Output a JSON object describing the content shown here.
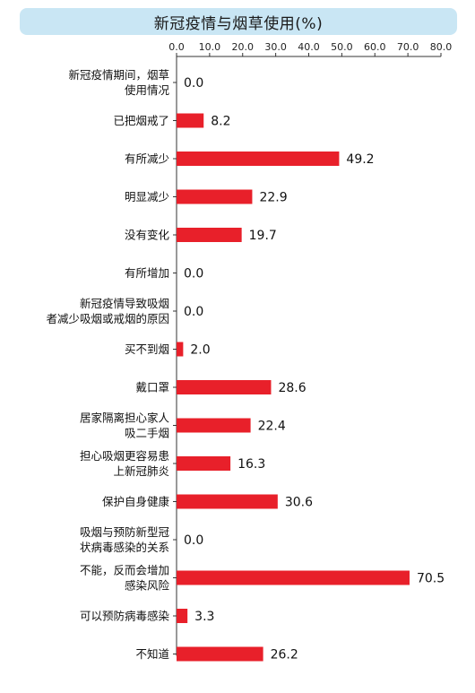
{
  "chart_data": {
    "type": "bar",
    "orientation": "horizontal",
    "title": "新冠疫情与烟草使用(%)",
    "xlim": [
      0,
      80
    ],
    "ticks": [
      "0.0",
      "10.0",
      "20.0",
      "30.0",
      "40.0",
      "50.0",
      "60.0",
      "70.0",
      "80.0"
    ],
    "tick_values": [
      0,
      10,
      20,
      30,
      40,
      50,
      60,
      70,
      80
    ],
    "bar_color": "#e8202a",
    "title_bg_color": "#c9e6f4",
    "categories": [
      [
        "新冠疫情期间，烟草",
        "使用情况"
      ],
      [
        "已把烟戒了"
      ],
      [
        "有所减少"
      ],
      [
        "明显减少"
      ],
      [
        "没有变化"
      ],
      [
        "有所增加"
      ],
      [
        "新冠疫情导致吸烟",
        "者减少吸烟或戒烟的原因"
      ],
      [
        "买不到烟"
      ],
      [
        "戴口罩"
      ],
      [
        "居家隔离担心家人",
        "吸二手烟"
      ],
      [
        "担心吸烟更容易患",
        "上新冠肺炎"
      ],
      [
        "保护自身健康"
      ],
      [
        "吸烟与预防新型冠",
        "状病毒感染的关系"
      ],
      [
        "不能，反而会增加",
        "感染风险"
      ],
      [
        "可以预防病毒感染"
      ],
      [
        "不知道"
      ]
    ],
    "values": [
      0.0,
      8.2,
      49.2,
      22.9,
      19.7,
      0.0,
      0.0,
      2.0,
      28.6,
      22.4,
      16.3,
      30.6,
      0.0,
      70.5,
      3.3,
      26.2
    ],
    "value_labels": [
      "0.0",
      "8.2",
      "49.2",
      "22.9",
      "19.7",
      "0.0",
      "0.0",
      "2.0",
      "28.6",
      "22.4",
      "16.3",
      "30.6",
      "0.0",
      "70.5",
      "3.3",
      "26.2"
    ]
  }
}
